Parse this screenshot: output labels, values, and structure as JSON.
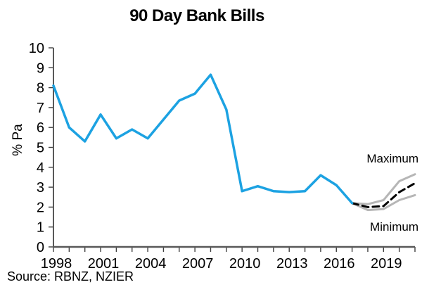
{
  "title": "90 Day Bank Bills",
  "source": "Source: RBNZ, NZIER",
  "annotations": {
    "maximum": "Maximum",
    "minimum": "Minimum"
  },
  "colors": {
    "history_line": "#1CA2E2",
    "forecast_line": "#000000",
    "range_lines": "#B6B6B6",
    "axis": "#595959",
    "text": "#000000"
  },
  "chart_data": {
    "type": "line",
    "title": "90 Day Bank Bills",
    "xlabel": "",
    "ylabel": "% Pa",
    "x_axis": {
      "range": [
        1998,
        2021
      ],
      "minor_tick_step": 1,
      "label_years": [
        1998,
        2001,
        2004,
        2007,
        2010,
        2013,
        2016,
        2019
      ]
    },
    "y_axis": {
      "range": [
        0,
        10
      ],
      "ticks": [
        0,
        1,
        2,
        3,
        4,
        5,
        6,
        7,
        8,
        9,
        10
      ]
    },
    "grid": false,
    "legend": "none (direct labels: Maximum / Minimum at right)",
    "series": [
      {
        "name": "90 day bank bills history",
        "color": "#1CA2E2",
        "line_style": "solid",
        "x": [
          1998,
          1999,
          2000,
          2001,
          2002,
          2003,
          2004,
          2005,
          2006,
          2007,
          2008,
          2009,
          2010,
          2011,
          2012,
          2013,
          2014,
          2015,
          2016,
          2017
        ],
        "values": [
          8.1,
          6.0,
          5.3,
          6.65,
          5.45,
          5.9,
          5.45,
          6.4,
          7.35,
          7.7,
          8.65,
          6.9,
          2.8,
          3.05,
          2.8,
          2.75,
          2.8,
          3.6,
          3.1,
          2.2
        ]
      },
      {
        "name": "central forecast",
        "color": "#000000",
        "line_style": "dashed",
        "x": [
          2017,
          2018,
          2019,
          2020,
          2021
        ],
        "values": [
          2.2,
          2.0,
          2.05,
          2.75,
          3.2
        ]
      },
      {
        "name": "maximum",
        "color": "#B6B6B6",
        "line_style": "solid",
        "x": [
          2017,
          2018,
          2019,
          2020,
          2021
        ],
        "values": [
          2.2,
          2.15,
          2.35,
          3.3,
          3.65
        ]
      },
      {
        "name": "minimum",
        "color": "#B6B6B6",
        "line_style": "solid",
        "x": [
          2017,
          2018,
          2019,
          2020,
          2021
        ],
        "values": [
          2.2,
          1.85,
          1.9,
          2.35,
          2.6
        ]
      }
    ]
  }
}
